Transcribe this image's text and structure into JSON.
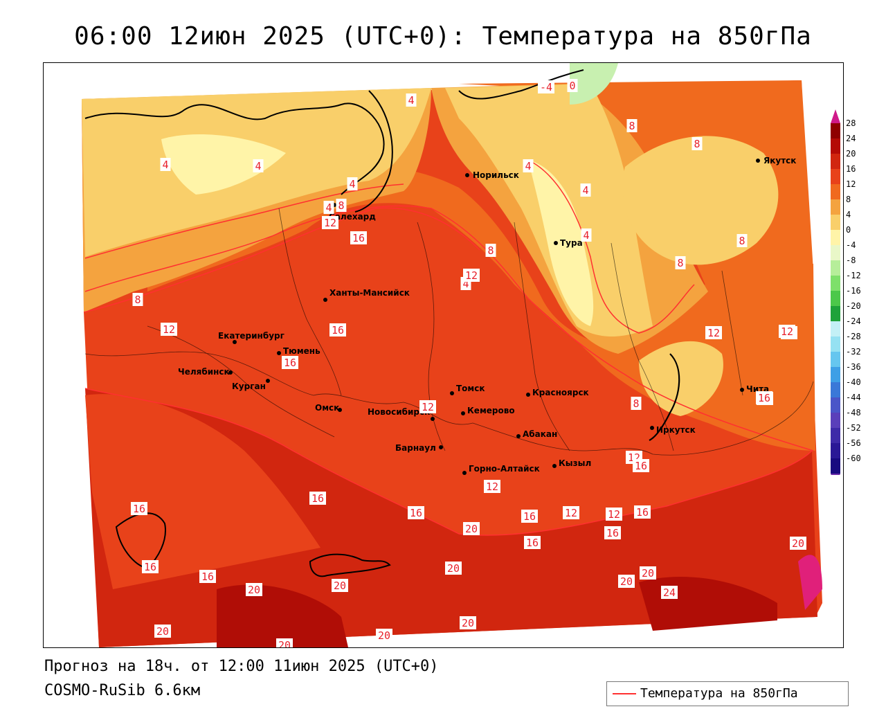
{
  "title": "06:00 12июн 2025 (UTC+0): Температура на 850гПа",
  "footer": {
    "forecast": "Прогноз на 18ч. от 12:00 11июн 2025 (UTC+0)",
    "model": "COSMO-RuSib 6.6км",
    "legend_label": "Температура на 850гПа"
  },
  "colors": {
    "contour_line": "#ff3030",
    "temp_0_4": "#fff4a8",
    "temp_4_8": "#f9cf6a",
    "temp_8_12": "#f4a33f",
    "temp_12_16": "#f06a1e",
    "temp_16_20": "#e8421a",
    "temp_20_24": "#d1260f",
    "temp_24_28": "#b00d06"
  },
  "colorbar": {
    "ticks": [
      "28",
      "24",
      "20",
      "16",
      "12",
      "8",
      "4",
      "0",
      "-4",
      "-8",
      "-12",
      "-16",
      "-20",
      "-24",
      "-28",
      "-32",
      "-36",
      "-40",
      "-44",
      "-48",
      "-52",
      "-56",
      "-60"
    ],
    "colors": [
      "#8f0000",
      "#b40b06",
      "#d1260f",
      "#e8421a",
      "#f06a1e",
      "#f4a33f",
      "#f9cf6a",
      "#fff4a8",
      "#e9f7c8",
      "#b6ee9a",
      "#7ee06a",
      "#4cc84a",
      "#1ea23a",
      "#c3f0f6",
      "#95e1f2",
      "#66c6ef",
      "#3e9fe6",
      "#3a78d8",
      "#4a55c8",
      "#5a3fba",
      "#3e2aa8",
      "#2a1896",
      "#180a80"
    ]
  },
  "cities": [
    {
      "name": "Салехард"
    },
    {
      "name": "Норильск"
    },
    {
      "name": "Якутск"
    },
    {
      "name": "Тура"
    },
    {
      "name": "Ханты-Мансийск"
    },
    {
      "name": "Екатеринбург"
    },
    {
      "name": "Тюмень"
    },
    {
      "name": "Челябинск"
    },
    {
      "name": "Курган"
    },
    {
      "name": "Омск"
    },
    {
      "name": "Новосибирск"
    },
    {
      "name": "Томск"
    },
    {
      "name": "Кемерово"
    },
    {
      "name": "Красноярск"
    },
    {
      "name": "Барнаул"
    },
    {
      "name": "Абакан"
    },
    {
      "name": "Иркутск"
    },
    {
      "name": "Чита"
    },
    {
      "name": "Кызыл"
    },
    {
      "name": "Горно-Алтайск"
    }
  ],
  "isotherm_labels": [
    "4",
    "4",
    "4",
    "4",
    "4",
    "4",
    "4",
    "4",
    "4",
    "8",
    "8",
    "8",
    "8",
    "8",
    "8",
    "8",
    "8",
    "12",
    "12",
    "12",
    "12",
    "12",
    "12",
    "12",
    "12",
    "12",
    "12",
    "12",
    "16",
    "16",
    "16",
    "16",
    "16",
    "16",
    "16",
    "16",
    "16",
    "16",
    "16",
    "16",
    "16",
    "16",
    "16",
    "20",
    "20",
    "20",
    "20",
    "20",
    "20",
    "20",
    "20",
    "20",
    "20",
    "20",
    "24",
    "0",
    "-4"
  ]
}
